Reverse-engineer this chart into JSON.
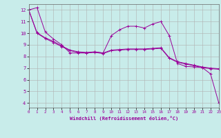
{
  "background_color": "#c8ecea",
  "grid_color": "#b0b0b0",
  "line_color": "#990099",
  "marker_color": "#990099",
  "xlabel": "Windchill (Refroidissement éolien,°C)",
  "ylabel": "",
  "xlim": [
    0,
    23
  ],
  "ylim": [
    3.6,
    12.5
  ],
  "yticks": [
    4,
    5,
    6,
    7,
    8,
    9,
    10,
    11,
    12
  ],
  "xticks": [
    0,
    1,
    2,
    3,
    4,
    5,
    6,
    7,
    8,
    9,
    10,
    11,
    12,
    13,
    14,
    15,
    16,
    17,
    18,
    19,
    20,
    21,
    22,
    23
  ],
  "series1_x": [
    0,
    1,
    2,
    3,
    4,
    5,
    6,
    7,
    8,
    9,
    10,
    11,
    12,
    13,
    14,
    15,
    16,
    17,
    18,
    19,
    20,
    21,
    22,
    23
  ],
  "series1_y": [
    12.0,
    12.2,
    10.1,
    9.5,
    9.0,
    8.3,
    8.3,
    8.3,
    8.4,
    8.3,
    9.8,
    10.3,
    10.6,
    10.6,
    10.45,
    10.8,
    11.0,
    9.8,
    7.4,
    7.15,
    7.1,
    7.05,
    6.5,
    4.0
  ],
  "series2_x": [
    0,
    1,
    2,
    3,
    4,
    5,
    6,
    7,
    8,
    9,
    10,
    11,
    12,
    13,
    14,
    15,
    16,
    17,
    18,
    19,
    20,
    21,
    22,
    23
  ],
  "series2_y": [
    12.0,
    10.05,
    9.6,
    9.3,
    8.9,
    8.55,
    8.4,
    8.35,
    8.4,
    8.3,
    8.55,
    8.6,
    8.65,
    8.65,
    8.65,
    8.7,
    8.75,
    7.9,
    7.55,
    7.4,
    7.25,
    7.1,
    7.0,
    6.95
  ],
  "series3_x": [
    0,
    1,
    2,
    3,
    4,
    5,
    6,
    7,
    8,
    9,
    10,
    11,
    12,
    13,
    14,
    15,
    16,
    17,
    18,
    19,
    20,
    21,
    22,
    23
  ],
  "series3_y": [
    12.0,
    10.0,
    9.55,
    9.2,
    8.85,
    8.5,
    8.35,
    8.3,
    8.35,
    8.25,
    8.5,
    8.55,
    8.6,
    8.6,
    8.6,
    8.65,
    8.7,
    7.85,
    7.5,
    7.35,
    7.2,
    7.05,
    6.95,
    6.9
  ]
}
